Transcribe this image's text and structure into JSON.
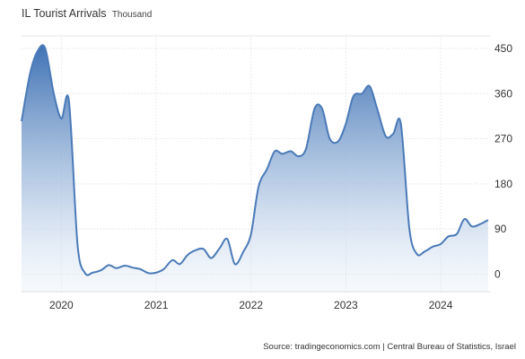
{
  "chart_data": {
    "type": "area",
    "title": "IL Tourist Arrivals",
    "subtitle": "Thousand",
    "xlabel": "",
    "ylabel": "",
    "x_ticks": [
      "2020",
      "2021",
      "2022",
      "2023",
      "2024"
    ],
    "x_tick_years": [
      2020,
      2021,
      2022,
      2023,
      2024
    ],
    "y_ticks": [
      0,
      90,
      180,
      270,
      360,
      450
    ],
    "ylim": [
      -35,
      475
    ],
    "xlim": [
      2019.58,
      2024.52
    ],
    "grid": true,
    "series": [
      {
        "name": "",
        "color": "#4a7ab8",
        "x": [
          2019.58,
          2019.67,
          2019.75,
          2019.83,
          2019.92,
          2020.0,
          2020.08,
          2020.17,
          2020.25,
          2020.33,
          2020.42,
          2020.5,
          2020.58,
          2020.67,
          2020.75,
          2020.83,
          2020.92,
          2021.0,
          2021.08,
          2021.17,
          2021.25,
          2021.33,
          2021.42,
          2021.5,
          2021.58,
          2021.67,
          2021.75,
          2021.83,
          2021.92,
          2022.0,
          2022.08,
          2022.17,
          2022.25,
          2022.33,
          2022.42,
          2022.5,
          2022.58,
          2022.67,
          2022.75,
          2022.83,
          2022.92,
          2023.0,
          2023.08,
          2023.17,
          2023.25,
          2023.33,
          2023.42,
          2023.5,
          2023.58,
          2023.67,
          2023.75,
          2023.83,
          2023.92,
          2024.0,
          2024.08,
          2024.17,
          2024.25,
          2024.33,
          2024.42,
          2024.5
        ],
        "values": [
          305,
          400,
          445,
          450,
          360,
          310,
          345,
          60,
          2,
          3,
          8,
          18,
          12,
          17,
          13,
          10,
          2,
          3,
          10,
          28,
          20,
          38,
          48,
          50,
          32,
          52,
          70,
          20,
          45,
          80,
          175,
          210,
          245,
          240,
          245,
          235,
          250,
          330,
          330,
          270,
          265,
          300,
          355,
          360,
          375,
          330,
          275,
          280,
          300,
          90,
          40,
          45,
          55,
          60,
          75,
          80,
          110,
          95,
          100,
          108
        ]
      }
    ]
  },
  "source": "Source: tradingeconomics.com | Central Bureau of Statistics, Israel"
}
